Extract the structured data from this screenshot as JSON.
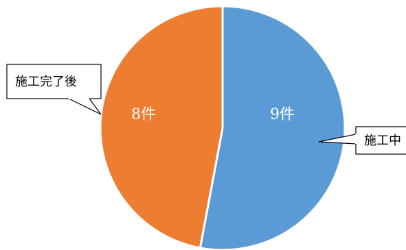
{
  "chart_data": {
    "type": "pie",
    "categories": [
      "施工中",
      "施工完了後"
    ],
    "values": [
      9,
      8
    ],
    "data_labels": [
      "9件",
      "8件"
    ],
    "colors": [
      "#5b9bd5",
      "#ed7d31"
    ],
    "legend": "none",
    "label_style": "callouts"
  }
}
